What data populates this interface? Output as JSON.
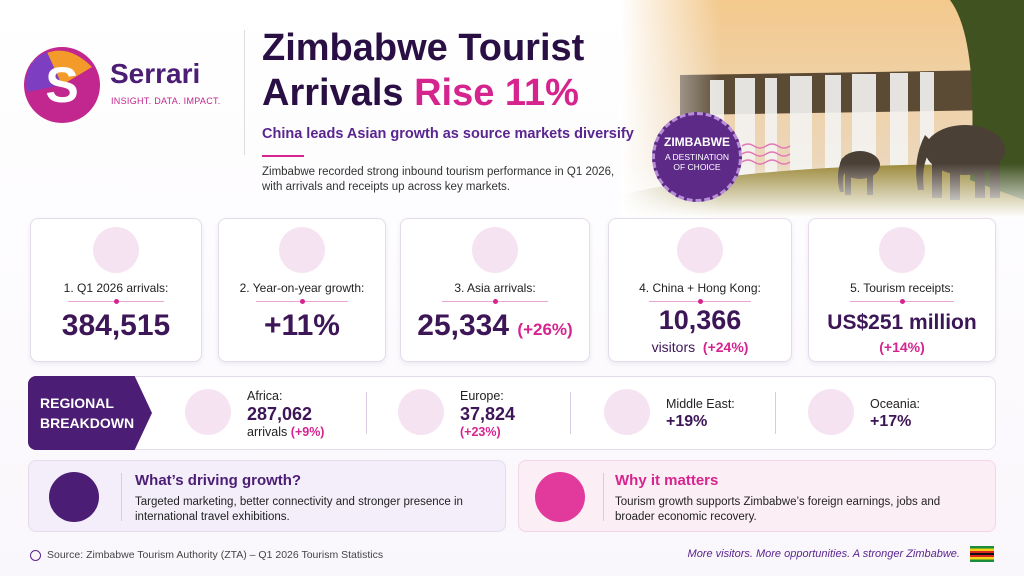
{
  "logo": {
    "name": "Serrari",
    "tagline": "INSIGHT. DATA. IMPACT."
  },
  "header": {
    "title_line1": "Zimbabwe Tourist",
    "title_line2": "Arrivals",
    "title_highlight": "Rise 11%",
    "subtitle": "China leads Asian growth as source markets diversify",
    "intro": "Zimbabwe recorded strong inbound tourism performance in Q1 2026, with arrivals and receipts up across key markets."
  },
  "stamp": {
    "title": "ZIMBABWE",
    "text": "A DESTINATION OF CHOICE"
  },
  "cards": [
    {
      "label": "1. Q1 2026 arrivals:",
      "value": "384,515"
    },
    {
      "label": "2. Year-on-year growth:",
      "value": "+11%"
    },
    {
      "label": "3. Asia arrivals:",
      "value": "25,334",
      "change": "(+26%)"
    },
    {
      "label": "4. China + Hong Kong:",
      "value": "10,366",
      "unit": "visitors",
      "change": "(+24%)"
    },
    {
      "label": "5. Tourism receipts:",
      "value": "US$251 million",
      "change": "(+14%)"
    }
  ],
  "regional": {
    "title": "REGIONAL BREAKDOWN",
    "regions": [
      {
        "name": "Africa:",
        "value": "287,062",
        "unit": "arrivals",
        "change": "(+9%)"
      },
      {
        "name": "Europe:",
        "value": "37,824",
        "change": "(+23%)"
      },
      {
        "name": "Middle East:",
        "value": "+19%"
      },
      {
        "name": "Oceania:",
        "value": "+17%"
      }
    ]
  },
  "panels": [
    {
      "title": "What’s driving growth?",
      "text": "Targeted marketing, better connectivity and stronger presence in international travel exhibitions."
    },
    {
      "title": "Why it matters",
      "text": "Tourism growth supports Zimbabwe’s foreign earnings, jobs and broader economic recovery."
    }
  ],
  "footer": {
    "source": "Source: Zimbabwe Tourism Authority (ZTA) – Q1 2026 Tourism Statistics",
    "tagline": "More visitors. More opportunities. A stronger Zimbabwe."
  }
}
